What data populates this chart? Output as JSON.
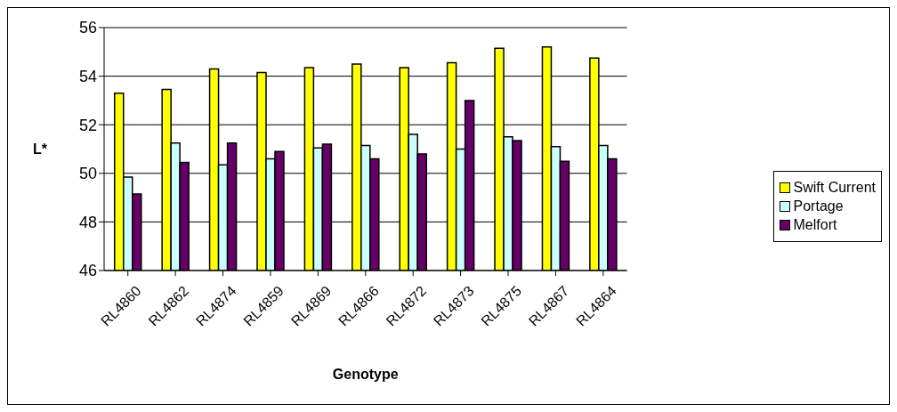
{
  "chart_data": {
    "type": "bar",
    "xlabel": "Genotype",
    "ylabel": "L*",
    "categories": [
      "RL4860",
      "RL4862",
      "RL4874",
      "RL4859",
      "RL4869",
      "RL4866",
      "RL4872",
      "RL4873",
      "RL4875",
      "RL4867",
      "RL4864"
    ],
    "series": [
      {
        "name": "Swift Current",
        "color": "#ffff00",
        "values": [
          53.3,
          53.45,
          54.3,
          54.15,
          54.35,
          54.5,
          54.35,
          54.55,
          55.15,
          55.2,
          54.75
        ]
      },
      {
        "name": "Portage",
        "color": "#ccffff",
        "values": [
          49.85,
          51.25,
          50.35,
          50.6,
          51.05,
          51.15,
          51.6,
          51.0,
          51.5,
          51.1,
          51.15
        ]
      },
      {
        "name": "Melfort",
        "color": "#660066",
        "values": [
          49.15,
          50.45,
          51.25,
          50.9,
          51.2,
          50.6,
          50.8,
          53.0,
          51.35,
          50.5,
          50.6
        ]
      }
    ],
    "ylim": [
      46,
      56
    ],
    "yticks": [
      46,
      48,
      50,
      52,
      54,
      56
    ],
    "grid": "y",
    "legend": "right"
  }
}
